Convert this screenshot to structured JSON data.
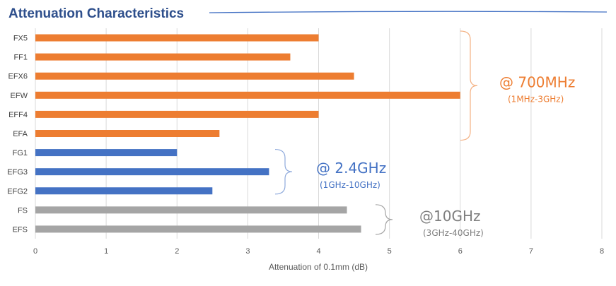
{
  "chart_data": {
    "type": "bar",
    "orientation": "horizontal",
    "title": "Attenuation Characteristics",
    "xlabel": "Attenuation of 0.1mm (dB)",
    "ylabel": "",
    "xlim": [
      0,
      8
    ],
    "x_ticks": [
      "0",
      "1",
      "2",
      "3",
      "4",
      "5",
      "6",
      "7",
      "8"
    ],
    "grid": "vertical",
    "categories": [
      "FX5",
      "FF1",
      "EFX6",
      "EFW",
      "EFF4",
      "EFA",
      "FG1",
      "EFG3",
      "EFG2",
      "FS",
      "EFS"
    ],
    "values": [
      4.0,
      3.6,
      4.5,
      6.0,
      4.0,
      2.6,
      2.0,
      3.3,
      2.5,
      4.4,
      4.6
    ],
    "groups": [
      {
        "label": "@ 700MHz",
        "sublabel": "(1MHz-3GHz)",
        "color": "#ed7d31",
        "members": [
          "FX5",
          "FF1",
          "EFX6",
          "EFW",
          "EFF4",
          "EFA"
        ]
      },
      {
        "label": "@ 2.4GHz",
        "sublabel": "(1GHz-10GHz)",
        "color": "#4472c4",
        "members": [
          "FG1",
          "EFG3",
          "EFG2"
        ]
      },
      {
        "label": "@10GHz",
        "sublabel": "(3GHz-40GHz)",
        "color": "#a5a5a5",
        "members": [
          "FS",
          "EFS"
        ]
      }
    ]
  },
  "colors": {
    "title": "#2e4f8c",
    "title_rule": "#4472c4",
    "gridline": "#d9d9d9",
    "bracket_700": "#f4b183",
    "bracket_24": "#8faadc",
    "bracket_10": "#a5a5a5",
    "annotation_10": "#7f7f7f"
  }
}
